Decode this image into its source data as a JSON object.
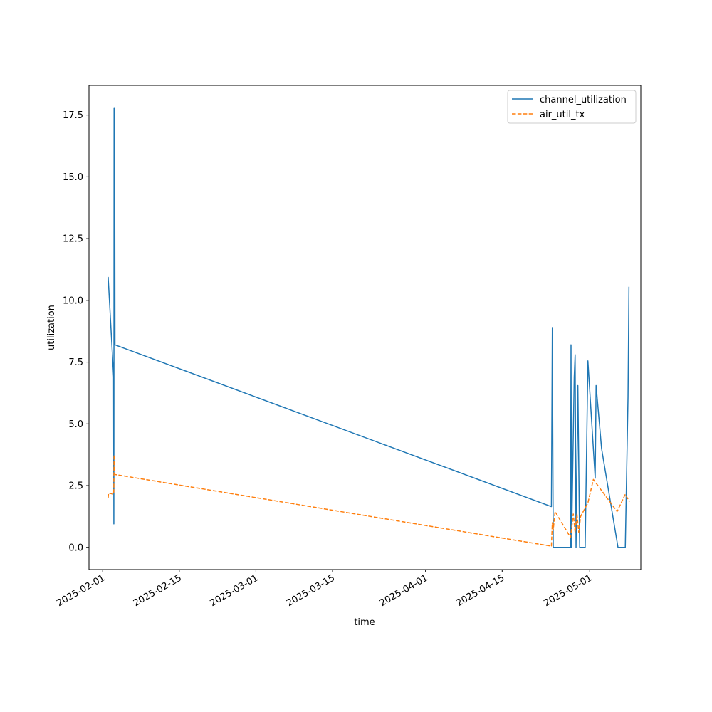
{
  "chart_data": {
    "type": "line",
    "title": "",
    "xlabel": "time",
    "ylabel": "utilization",
    "xlim": [
      "2025-01-29T12:00",
      "2025-05-10T08:00"
    ],
    "ylim": [
      -0.9,
      18.7
    ],
    "xticks": [
      "2025-02-01",
      "2025-02-15",
      "2025-03-01",
      "2025-03-15",
      "2025-04-01",
      "2025-04-15",
      "2025-05-01"
    ],
    "yticks": [
      0.0,
      2.5,
      5.0,
      7.5,
      10.0,
      12.5,
      15.0,
      17.5
    ],
    "ytick_labels": [
      "0.0",
      "2.5",
      "5.0",
      "7.5",
      "10.0",
      "12.5",
      "15.0",
      "17.5"
    ],
    "grid": false,
    "legend_position": "top-right",
    "series": [
      {
        "name": "channel_utilization",
        "color": "#1f77b4",
        "style": "solid",
        "points": [
          [
            "2025-02-02T00:00",
            10.95
          ],
          [
            "2025-02-03T00:00",
            6.9
          ],
          [
            "2025-02-03T01:00",
            0.95
          ],
          [
            "2025-02-03T02:00",
            17.8
          ],
          [
            "2025-02-03T03:00",
            17.8
          ],
          [
            "2025-02-03T04:00",
            8.2
          ],
          [
            "2025-02-03T05:00",
            14.3
          ],
          [
            "2025-02-03T06:00",
            8.2
          ],
          [
            "2025-04-24T00:00",
            1.65
          ],
          [
            "2025-04-24T04:00",
            8.9
          ],
          [
            "2025-04-24T08:00",
            0.0
          ],
          [
            "2025-04-27T12:00",
            0.0
          ],
          [
            "2025-04-27T14:00",
            8.2
          ],
          [
            "2025-04-27T16:00",
            0.0
          ],
          [
            "2025-04-28T04:00",
            6.9
          ],
          [
            "2025-04-28T08:00",
            7.8
          ],
          [
            "2025-04-28T12:00",
            0.0
          ],
          [
            "2025-04-28T20:00",
            6.55
          ],
          [
            "2025-04-29T04:00",
            0.0
          ],
          [
            "2025-04-30T04:00",
            0.0
          ],
          [
            "2025-04-30T12:00",
            5.0
          ],
          [
            "2025-04-30T16:00",
            7.55
          ],
          [
            "2025-05-02T00:00",
            2.8
          ],
          [
            "2025-05-02T04:00",
            6.55
          ],
          [
            "2025-05-03T04:00",
            4.0
          ],
          [
            "2025-05-06T04:00",
            0.0
          ],
          [
            "2025-05-07T12:00",
            0.0
          ],
          [
            "2025-05-08T00:00",
            6.1
          ],
          [
            "2025-05-08T04:00",
            10.55
          ]
        ]
      },
      {
        "name": "air_util_tx",
        "color": "#ff7f0e",
        "style": "dashed",
        "points": [
          [
            "2025-02-02T00:00",
            2.0
          ],
          [
            "2025-02-02T02:00",
            2.2
          ],
          [
            "2025-02-03T00:00",
            2.15
          ],
          [
            "2025-02-03T01:00",
            2.4
          ],
          [
            "2025-02-03T02:00",
            3.75
          ],
          [
            "2025-02-03T03:00",
            3.0
          ],
          [
            "2025-02-03T06:00",
            2.95
          ],
          [
            "2025-04-24T00:00",
            0.05
          ],
          [
            "2025-04-24T04:00",
            1.0
          ],
          [
            "2025-04-24T08:00",
            0.7
          ],
          [
            "2025-04-24T16:00",
            1.45
          ],
          [
            "2025-04-27T12:00",
            0.4
          ],
          [
            "2025-04-28T00:00",
            1.35
          ],
          [
            "2025-04-28T08:00",
            0.6
          ],
          [
            "2025-04-28T16:00",
            1.35
          ],
          [
            "2025-04-29T00:00",
            0.6
          ],
          [
            "2025-04-29T08:00",
            1.25
          ],
          [
            "2025-04-30T16:00",
            1.8
          ],
          [
            "2025-05-01T16:00",
            2.75
          ],
          [
            "2025-05-06T00:00",
            1.45
          ],
          [
            "2025-05-07T12:00",
            2.15
          ],
          [
            "2025-05-08T06:00",
            1.85
          ]
        ]
      }
    ]
  }
}
